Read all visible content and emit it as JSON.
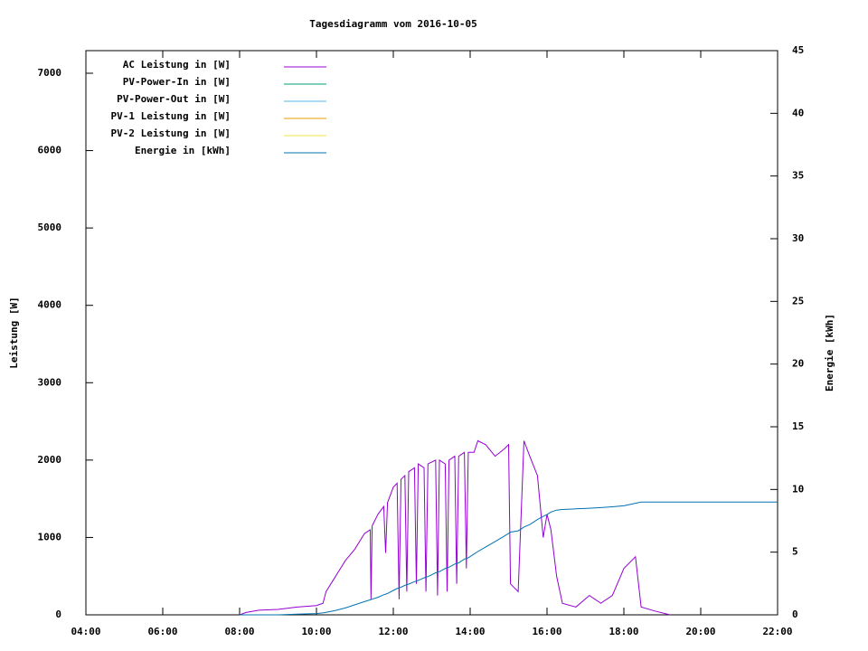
{
  "chart_data": {
    "type": "line",
    "title": "Tagesdiagramm vom 2016-10-05",
    "ylabel": "Leistung [W]",
    "y2label": "Energie [kWh]",
    "legend": "top-left",
    "xlim": [
      4,
      22
    ],
    "xticks": [
      {
        "value": 4,
        "label": "04:00"
      },
      {
        "value": 6,
        "label": "06:00"
      },
      {
        "value": 8,
        "label": "08:00"
      },
      {
        "value": 10,
        "label": "10:00"
      },
      {
        "value": 12,
        "label": "12:00"
      },
      {
        "value": 14,
        "label": "14:00"
      },
      {
        "value": 16,
        "label": "16:00"
      },
      {
        "value": 18,
        "label": "18:00"
      },
      {
        "value": 20,
        "label": "20:00"
      },
      {
        "value": 22,
        "label": "22:00"
      }
    ],
    "ylim": [
      0,
      7292
    ],
    "yticks": [
      0,
      1000,
      2000,
      3000,
      4000,
      5000,
      6000,
      7000
    ],
    "y2lim": [
      0,
      45
    ],
    "y2ticks": [
      0,
      5,
      10,
      15,
      20,
      25,
      30,
      35,
      40,
      45
    ],
    "x": [
      8.0,
      8.17,
      8.5,
      9.0,
      9.5,
      10.0,
      10.17,
      10.25,
      10.5,
      10.75,
      11.0,
      11.25,
      11.4,
      11.42,
      11.45,
      11.6,
      11.75,
      11.8,
      11.85,
      12.0,
      12.1,
      12.15,
      12.2,
      12.3,
      12.35,
      12.4,
      12.55,
      12.6,
      12.65,
      12.8,
      12.85,
      12.9,
      13.1,
      13.15,
      13.2,
      13.35,
      13.4,
      13.45,
      13.6,
      13.65,
      13.7,
      13.85,
      13.9,
      13.95,
      14.1,
      14.2,
      14.4,
      14.65,
      14.9,
      15.0,
      15.05,
      15.25,
      15.4,
      15.55,
      15.75,
      15.9,
      16.0,
      16.1,
      16.25,
      16.4,
      16.75,
      17.1,
      17.4,
      17.7,
      18.0,
      18.3,
      18.45,
      18.8,
      19.2,
      22.0
    ],
    "series": [
      {
        "name": "AC Leistung in [W]",
        "color": "#9400d3",
        "values": [
          0,
          30,
          60,
          70,
          100,
          120,
          150,
          300,
          500,
          700,
          850,
          1050,
          1100,
          200,
          1150,
          1300,
          1400,
          800,
          1450,
          1650,
          1700,
          200,
          1750,
          1800,
          300,
          1850,
          1900,
          400,
          1950,
          1900,
          300,
          1950,
          2000,
          250,
          2000,
          1950,
          300,
          2000,
          2050,
          400,
          2050,
          2100,
          600,
          2100,
          2100,
          2250,
          2200,
          2050,
          2150,
          2200,
          400,
          300,
          2250,
          2050,
          1800,
          1000,
          1300,
          1100,
          500,
          150,
          100,
          250,
          150,
          250,
          600,
          750,
          100,
          50,
          0,
          null
        ]
      },
      {
        "name": "PV-Power-In in [W]",
        "color": "#009e73",
        "values": [
          null,
          null,
          null,
          null,
          null,
          null,
          null,
          null,
          null,
          null,
          null,
          null,
          null,
          null,
          null,
          null,
          null,
          null,
          null,
          null,
          null,
          null,
          null,
          null,
          null,
          null,
          null,
          null,
          null,
          null,
          null,
          null,
          null,
          null,
          null,
          null,
          null,
          null,
          null,
          null,
          null,
          null,
          null,
          null,
          null,
          null,
          null,
          null,
          null,
          null,
          null,
          null,
          null,
          null,
          null,
          null,
          null,
          null,
          null,
          null,
          null,
          null,
          null,
          null,
          null,
          null,
          null,
          null,
          null,
          null
        ]
      },
      {
        "name": "PV-Power-Out in [W]",
        "color": "#56b4e9",
        "values": [
          null,
          null,
          null,
          null,
          null,
          null,
          null,
          null,
          null,
          null,
          null,
          null,
          null,
          null,
          null,
          null,
          null,
          null,
          null,
          null,
          null,
          null,
          null,
          null,
          null,
          null,
          null,
          null,
          null,
          null,
          null,
          null,
          null,
          null,
          null,
          null,
          null,
          null,
          null,
          null,
          null,
          null,
          null,
          null,
          null,
          null,
          null,
          null,
          null,
          null,
          null,
          null,
          null,
          null,
          null,
          null,
          null,
          null,
          null,
          null,
          null,
          null,
          null,
          null,
          null,
          null,
          null,
          null,
          null,
          null
        ]
      },
      {
        "name": "PV-1 Leistung in [W]",
        "color": "#e69f00",
        "values": [
          null,
          null,
          null,
          null,
          null,
          null,
          null,
          null,
          null,
          null,
          null,
          null,
          null,
          null,
          null,
          null,
          null,
          null,
          null,
          null,
          null,
          null,
          null,
          null,
          null,
          null,
          null,
          null,
          null,
          null,
          null,
          null,
          null,
          null,
          null,
          null,
          null,
          null,
          null,
          null,
          null,
          null,
          null,
          null,
          null,
          null,
          null,
          null,
          null,
          null,
          null,
          null,
          null,
          null,
          null,
          null,
          null,
          null,
          null,
          null,
          null,
          null,
          null,
          null,
          null,
          null,
          null,
          null,
          null,
          null
        ]
      },
      {
        "name": "PV-2 Leistung in [W]",
        "color": "#f0e442",
        "values": [
          null,
          null,
          null,
          null,
          null,
          null,
          null,
          null,
          null,
          null,
          null,
          null,
          null,
          null,
          null,
          null,
          null,
          null,
          null,
          null,
          null,
          null,
          null,
          null,
          null,
          null,
          null,
          null,
          null,
          null,
          null,
          null,
          null,
          null,
          null,
          null,
          null,
          null,
          null,
          null,
          null,
          null,
          null,
          null,
          null,
          null,
          null,
          null,
          null,
          null,
          null,
          null,
          null,
          null,
          null,
          null,
          null,
          null,
          null,
          null,
          null,
          null,
          null,
          null,
          null,
          null,
          null,
          null,
          null,
          null
        ]
      },
      {
        "name": "Energie in [kWh]",
        "color": "#0072b2",
        "axis": "y2",
        "values": [
          0,
          0,
          0,
          0,
          0.05,
          0.1,
          0.15,
          0.2,
          0.35,
          0.55,
          0.8,
          1.05,
          1.2,
          1.22,
          1.25,
          1.4,
          1.6,
          1.65,
          1.7,
          1.95,
          2.1,
          2.15,
          2.2,
          2.35,
          2.4,
          2.45,
          2.65,
          2.7,
          2.75,
          2.95,
          3.0,
          3.05,
          3.35,
          3.4,
          3.45,
          3.7,
          3.75,
          3.8,
          4.05,
          4.1,
          4.15,
          4.45,
          4.5,
          4.55,
          4.85,
          5.05,
          5.4,
          5.85,
          6.3,
          6.5,
          6.6,
          6.7,
          7.0,
          7.2,
          7.6,
          7.85,
          8.0,
          8.2,
          8.35,
          8.4,
          8.45,
          8.5,
          8.55,
          8.62,
          8.7,
          8.9,
          9.0,
          9.0,
          9.0,
          9.0
        ]
      }
    ]
  }
}
